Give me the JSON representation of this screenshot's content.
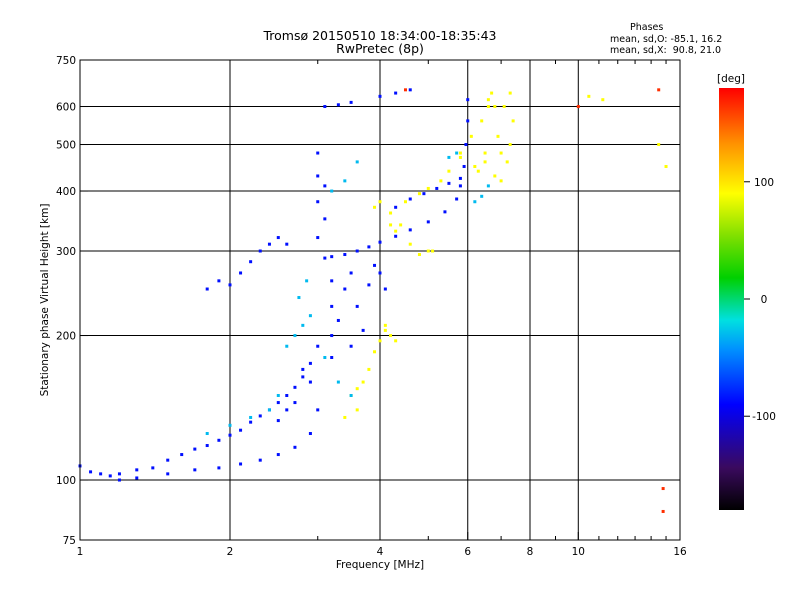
{
  "chart_data": {
    "type": "scatter",
    "title": "Tromsø 20150510 18:34:00-18:35:43",
    "subtitle": "RwPretec (8p)",
    "xlabel": "Frequency [MHz]",
    "ylabel": "Stationary phase Virtual Height [km]",
    "xscale": "log",
    "yscale": "log",
    "xlim": [
      1,
      16
    ],
    "ylim": [
      75,
      750
    ],
    "xticks": [
      1,
      2,
      4,
      6,
      8,
      10,
      16
    ],
    "xminor_ticks": [
      3,
      5,
      7,
      9,
      11,
      12,
      13,
      14,
      15
    ],
    "yticks": [
      75,
      100,
      200,
      300,
      400,
      500,
      600,
      750
    ],
    "grid": true,
    "stats_box": {
      "title": "Phases",
      "line1": "mean, sd,O: -85.1, 16.2",
      "line2": "mean, sd,X:  90.8, 21.0"
    },
    "colorbar": {
      "label": "[deg]",
      "range": [
        -180,
        180
      ],
      "ticks": [
        100,
        0,
        -100
      ]
    },
    "series": [
      {
        "color_hint": "blue",
        "phase": -85,
        "points": [
          [
            1.0,
            107
          ],
          [
            1.05,
            104
          ],
          [
            1.1,
            103
          ],
          [
            1.15,
            102
          ],
          [
            1.2,
            103
          ],
          [
            1.3,
            105
          ],
          [
            1.4,
            106
          ],
          [
            1.5,
            110
          ],
          [
            1.6,
            113
          ],
          [
            1.7,
            116
          ],
          [
            1.8,
            118
          ],
          [
            1.9,
            121
          ],
          [
            2.0,
            124
          ],
          [
            2.1,
            127
          ],
          [
            2.2,
            132
          ],
          [
            2.3,
            136
          ],
          [
            2.4,
            140
          ],
          [
            2.5,
            145
          ],
          [
            2.6,
            150
          ],
          [
            2.7,
            156
          ],
          [
            2.8,
            164
          ],
          [
            2.9,
            175
          ],
          [
            3.0,
            190
          ],
          [
            1.2,
            100
          ],
          [
            1.3,
            101
          ],
          [
            1.5,
            103
          ],
          [
            1.7,
            105
          ],
          [
            1.9,
            106
          ],
          [
            2.1,
            108
          ],
          [
            2.3,
            110
          ],
          [
            2.5,
            113
          ],
          [
            2.7,
            117
          ],
          [
            2.9,
            125
          ],
          [
            3.0,
            140
          ],
          [
            3.1,
            290
          ],
          [
            3.2,
            292
          ],
          [
            3.4,
            295
          ],
          [
            3.6,
            300
          ],
          [
            3.8,
            306
          ],
          [
            4.0,
            313
          ],
          [
            4.3,
            322
          ],
          [
            4.6,
            332
          ],
          [
            5.0,
            345
          ],
          [
            5.4,
            362
          ],
          [
            5.7,
            385
          ],
          [
            5.8,
            410
          ],
          [
            5.9,
            450
          ],
          [
            5.95,
            500
          ],
          [
            6.0,
            560
          ],
          [
            6.0,
            620
          ],
          [
            3.0,
            320
          ],
          [
            3.0,
            380
          ],
          [
            3.0,
            430
          ],
          [
            3.0,
            480
          ],
          [
            3.1,
            350
          ],
          [
            3.1,
            410
          ],
          [
            3.2,
            260
          ],
          [
            3.2,
            230
          ],
          [
            3.2,
            200
          ],
          [
            3.2,
            180
          ],
          [
            3.3,
            215
          ],
          [
            3.4,
            250
          ],
          [
            3.5,
            270
          ],
          [
            3.5,
            190
          ],
          [
            3.6,
            230
          ],
          [
            3.7,
            205
          ],
          [
            3.8,
            255
          ],
          [
            3.9,
            280
          ],
          [
            4.0,
            270
          ],
          [
            4.1,
            250
          ],
          [
            3.1,
            600
          ],
          [
            3.3,
            605
          ],
          [
            3.5,
            612
          ],
          [
            4.0,
            630
          ],
          [
            4.3,
            640
          ],
          [
            4.6,
            650
          ],
          [
            1.8,
            250
          ],
          [
            1.9,
            260
          ],
          [
            2.0,
            255
          ],
          [
            2.1,
            270
          ],
          [
            2.2,
            285
          ],
          [
            2.3,
            300
          ],
          [
            2.4,
            310
          ],
          [
            2.5,
            320
          ],
          [
            2.6,
            310
          ],
          [
            2.8,
            170
          ],
          [
            2.9,
            160
          ],
          [
            2.7,
            145
          ],
          [
            2.6,
            140
          ],
          [
            2.5,
            133
          ],
          [
            4.3,
            370
          ],
          [
            4.6,
            385
          ],
          [
            4.9,
            395
          ],
          [
            5.2,
            405
          ],
          [
            5.5,
            415
          ],
          [
            5.8,
            425
          ]
        ]
      },
      {
        "color_hint": "yellow-orange",
        "phase": 90,
        "points": [
          [
            3.7,
            160
          ],
          [
            3.8,
            170
          ],
          [
            3.9,
            185
          ],
          [
            4.0,
            195
          ],
          [
            4.1,
            205
          ],
          [
            4.2,
            200
          ],
          [
            4.3,
            195
          ],
          [
            3.5,
            150
          ],
          [
            3.6,
            155
          ],
          [
            3.9,
            370
          ],
          [
            4.0,
            380
          ],
          [
            4.2,
            360
          ],
          [
            4.4,
            340
          ],
          [
            4.6,
            310
          ],
          [
            4.8,
            295
          ],
          [
            5.0,
            300
          ],
          [
            4.5,
            380
          ],
          [
            4.8,
            395
          ],
          [
            5.0,
            405
          ],
          [
            5.3,
            420
          ],
          [
            5.5,
            440
          ],
          [
            5.8,
            470
          ],
          [
            6.1,
            520
          ],
          [
            6.4,
            560
          ],
          [
            6.6,
            600
          ],
          [
            6.7,
            640
          ],
          [
            6.8,
            600
          ],
          [
            6.9,
            520
          ],
          [
            7.0,
            480
          ],
          [
            7.2,
            460
          ],
          [
            7.3,
            500
          ],
          [
            7.4,
            560
          ],
          [
            6.3,
            440
          ],
          [
            6.5,
            460
          ],
          [
            6.8,
            430
          ],
          [
            7.0,
            420
          ],
          [
            5.8,
            480
          ],
          [
            3.6,
            140
          ],
          [
            3.4,
            135
          ],
          [
            4.1,
            210
          ],
          [
            4.2,
            340
          ],
          [
            4.3,
            330
          ],
          [
            5.1,
            300
          ],
          [
            6.2,
            450
          ],
          [
            6.5,
            480
          ],
          [
            6.6,
            620
          ],
          [
            7.1,
            600
          ],
          [
            7.3,
            640
          ],
          [
            15.0,
            450
          ],
          [
            14.5,
            500
          ],
          [
            10.5,
            630
          ],
          [
            11.2,
            620
          ]
        ]
      },
      {
        "color_hint": "cyan",
        "phase": -30,
        "points": [
          [
            2.6,
            190
          ],
          [
            2.7,
            200
          ],
          [
            2.8,
            210
          ],
          [
            2.9,
            220
          ],
          [
            2.75,
            240
          ],
          [
            2.85,
            260
          ],
          [
            3.1,
            180
          ],
          [
            3.3,
            160
          ],
          [
            3.5,
            150
          ],
          [
            2.5,
            150
          ],
          [
            2.4,
            140
          ],
          [
            2.2,
            135
          ],
          [
            2.0,
            130
          ],
          [
            1.8,
            125
          ],
          [
            3.2,
            400
          ],
          [
            3.4,
            420
          ],
          [
            3.6,
            460
          ],
          [
            5.5,
            470
          ],
          [
            5.7,
            480
          ],
          [
            6.2,
            380
          ],
          [
            6.4,
            390
          ],
          [
            6.6,
            410
          ]
        ]
      },
      {
        "color_hint": "red",
        "phase": 165,
        "points": [
          [
            4.5,
            650
          ],
          [
            10.0,
            600
          ],
          [
            14.8,
            96
          ],
          [
            14.8,
            86
          ],
          [
            14.5,
            650
          ]
        ]
      }
    ]
  }
}
